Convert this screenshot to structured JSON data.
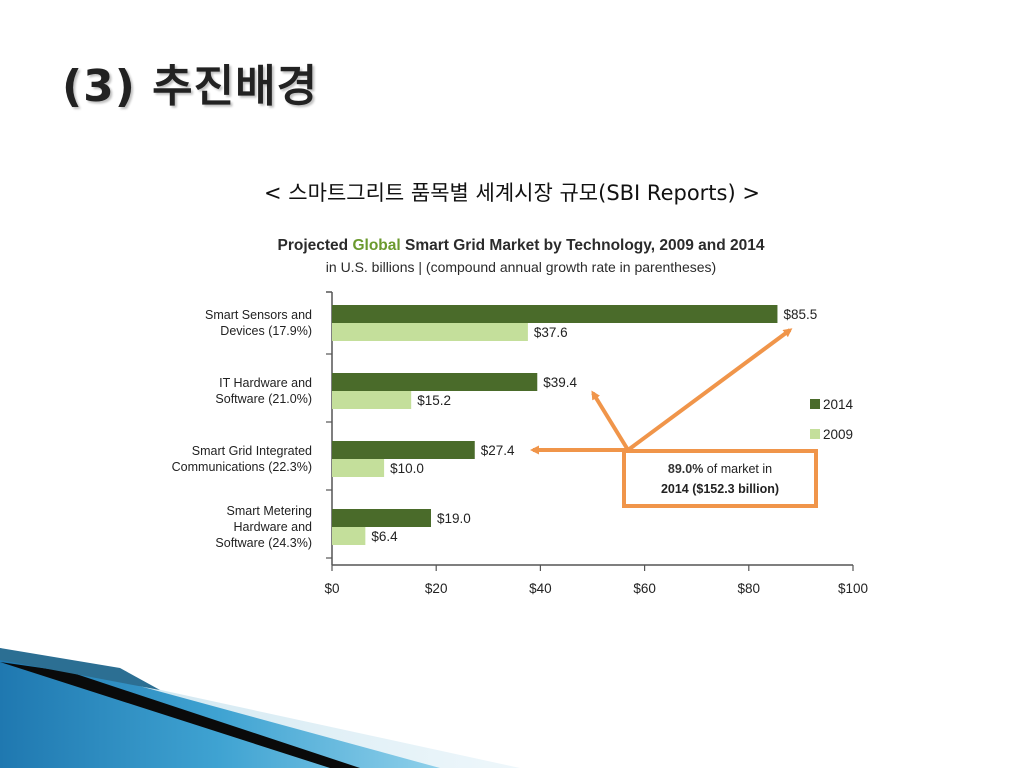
{
  "slide": {
    "title": "(3) 추진배경",
    "caption": "< 스마트그리트 품목별 세계시장 규모(SBI Reports) >"
  },
  "colors": {
    "dark_green": "#4a6b2a",
    "light_green": "#c4df9b",
    "callout_orange": "#f0954a",
    "axis": "#555555"
  },
  "chart_data": {
    "type": "bar",
    "orientation": "horizontal",
    "title_parts": [
      "Projected ",
      "Global",
      " Smart Grid Market by Technology, 2009 and 2014"
    ],
    "subtitle": "in U.S. billions  |  (compound annual growth rate in parentheses)",
    "categories": [
      [
        "Smart Sensors and",
        "Devices (17.9%)"
      ],
      [
        "IT Hardware and",
        "Software (21.0%)"
      ],
      [
        "Smart Grid Integrated",
        "Communications (22.3%)"
      ],
      [
        "Smart Metering",
        "Hardware and",
        "Software (24.3%)"
      ]
    ],
    "series": [
      {
        "name": "2014",
        "values": [
          85.5,
          39.4,
          27.4,
          19.0
        ],
        "labels": [
          "$85.5",
          "$39.4",
          "$27.4",
          "$19.0"
        ]
      },
      {
        "name": "2009",
        "values": [
          37.6,
          15.2,
          10.0,
          6.4
        ],
        "labels": [
          "$37.6",
          "$15.2",
          "$10.0",
          "$6.4"
        ]
      }
    ],
    "xlim": [
      0,
      100
    ],
    "xticks": [
      0,
      20,
      40,
      60,
      80,
      100
    ],
    "xtick_labels": [
      "$0",
      "$20",
      "$40",
      "$60",
      "$80",
      "$100"
    ],
    "legend": [
      "2014",
      "2009"
    ],
    "legend_position": "right",
    "annotation": {
      "lines": [
        [
          "89.0%",
          " of market in"
        ],
        [
          "2014 ($152.3 billion)"
        ]
      ]
    }
  }
}
